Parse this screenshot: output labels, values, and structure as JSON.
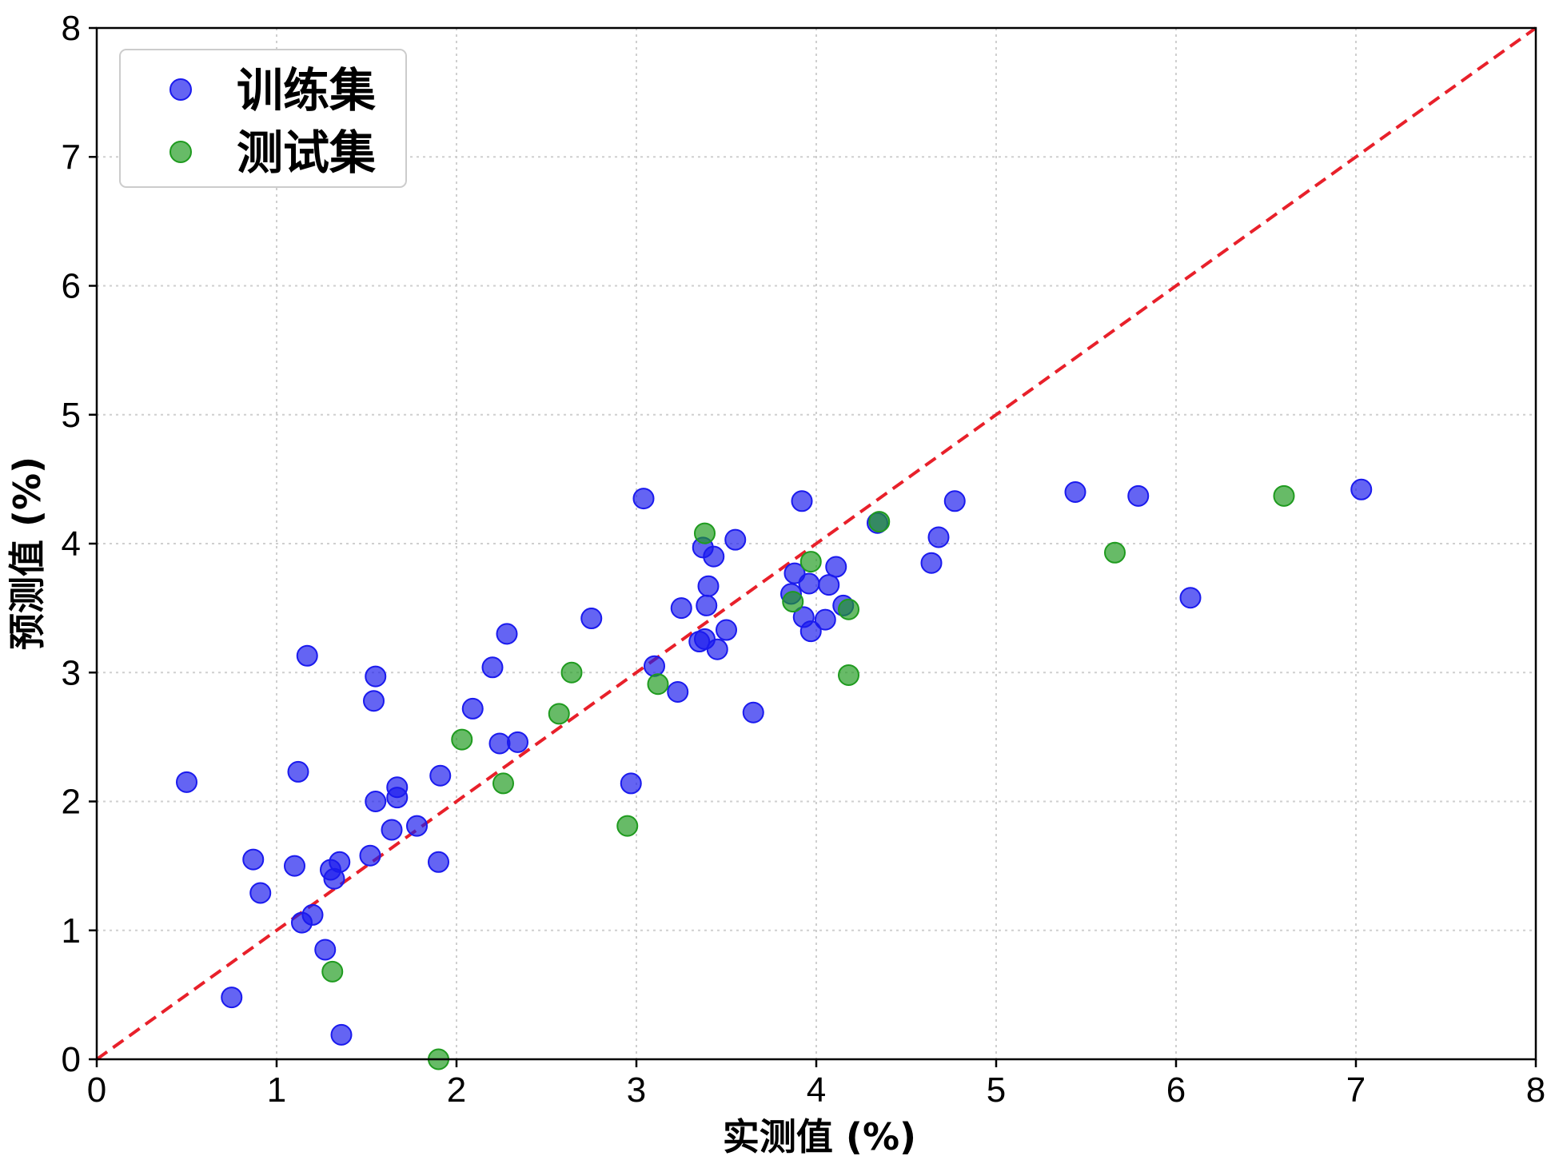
{
  "chart_data": {
    "type": "scatter",
    "title": "",
    "xlabel": "实测值 (%)",
    "ylabel": "预测值 (%)",
    "xlim": [
      0,
      8
    ],
    "ylim": [
      0,
      8
    ],
    "xticks": [
      "0",
      "1",
      "2",
      "3",
      "4",
      "5",
      "6",
      "7",
      "8"
    ],
    "yticks": [
      "0",
      "1",
      "2",
      "3",
      "4",
      "5",
      "6",
      "7",
      "8"
    ],
    "grid": true,
    "legend_position": "top-left",
    "reference_line": {
      "style": "dashed",
      "color": "#e8202a",
      "from": [
        0,
        0
      ],
      "to": [
        8,
        8
      ]
    },
    "series": [
      {
        "name": "训练集",
        "color": "#1a1aee",
        "points": [
          [
            0.5,
            2.15
          ],
          [
            0.75,
            0.48
          ],
          [
            0.87,
            1.55
          ],
          [
            0.91,
            1.29
          ],
          [
            1.1,
            1.5
          ],
          [
            1.12,
            2.23
          ],
          [
            1.14,
            1.06
          ],
          [
            1.17,
            3.13
          ],
          [
            1.2,
            1.12
          ],
          [
            1.27,
            0.85
          ],
          [
            1.3,
            1.47
          ],
          [
            1.32,
            1.4
          ],
          [
            1.35,
            1.53
          ],
          [
            1.36,
            0.19
          ],
          [
            1.52,
            1.58
          ],
          [
            1.54,
            2.78
          ],
          [
            1.55,
            2.0
          ],
          [
            1.55,
            2.97
          ],
          [
            1.64,
            1.78
          ],
          [
            1.67,
            2.03
          ],
          [
            1.67,
            2.11
          ],
          [
            1.78,
            1.81
          ],
          [
            1.9,
            1.53
          ],
          [
            1.91,
            2.2
          ],
          [
            2.09,
            2.72
          ],
          [
            2.2,
            3.04
          ],
          [
            2.24,
            2.45
          ],
          [
            2.28,
            3.3
          ],
          [
            2.34,
            2.46
          ],
          [
            2.75,
            3.42
          ],
          [
            2.97,
            2.14
          ],
          [
            3.04,
            4.35
          ],
          [
            3.1,
            3.05
          ],
          [
            3.23,
            2.85
          ],
          [
            3.25,
            3.5
          ],
          [
            3.35,
            3.24
          ],
          [
            3.37,
            3.97
          ],
          [
            3.38,
            3.26
          ],
          [
            3.39,
            3.52
          ],
          [
            3.4,
            3.67
          ],
          [
            3.43,
            3.9
          ],
          [
            3.45,
            3.18
          ],
          [
            3.5,
            3.33
          ],
          [
            3.55,
            4.03
          ],
          [
            3.65,
            2.69
          ],
          [
            3.86,
            3.61
          ],
          [
            3.88,
            3.77
          ],
          [
            3.92,
            4.33
          ],
          [
            3.93,
            3.43
          ],
          [
            3.96,
            3.69
          ],
          [
            3.97,
            3.32
          ],
          [
            4.05,
            3.41
          ],
          [
            4.07,
            3.68
          ],
          [
            4.11,
            3.82
          ],
          [
            4.15,
            3.52
          ],
          [
            4.34,
            4.16
          ],
          [
            4.64,
            3.85
          ],
          [
            4.68,
            4.05
          ],
          [
            4.77,
            4.33
          ],
          [
            5.44,
            4.4
          ],
          [
            5.79,
            4.37
          ],
          [
            6.08,
            3.58
          ],
          [
            7.03,
            4.42
          ]
        ]
      },
      {
        "name": "测试集",
        "color": "#1f9b1f",
        "points": [
          [
            1.31,
            0.68
          ],
          [
            1.9,
            0.0
          ],
          [
            2.03,
            2.48
          ],
          [
            2.26,
            2.14
          ],
          [
            2.57,
            2.68
          ],
          [
            2.64,
            3.0
          ],
          [
            2.95,
            1.81
          ],
          [
            3.12,
            2.91
          ],
          [
            3.38,
            4.08
          ],
          [
            3.87,
            3.55
          ],
          [
            3.97,
            3.86
          ],
          [
            4.18,
            3.49
          ],
          [
            4.18,
            2.98
          ],
          [
            4.35,
            4.17
          ],
          [
            5.66,
            3.93
          ],
          [
            6.6,
            4.37
          ]
        ]
      }
    ]
  }
}
